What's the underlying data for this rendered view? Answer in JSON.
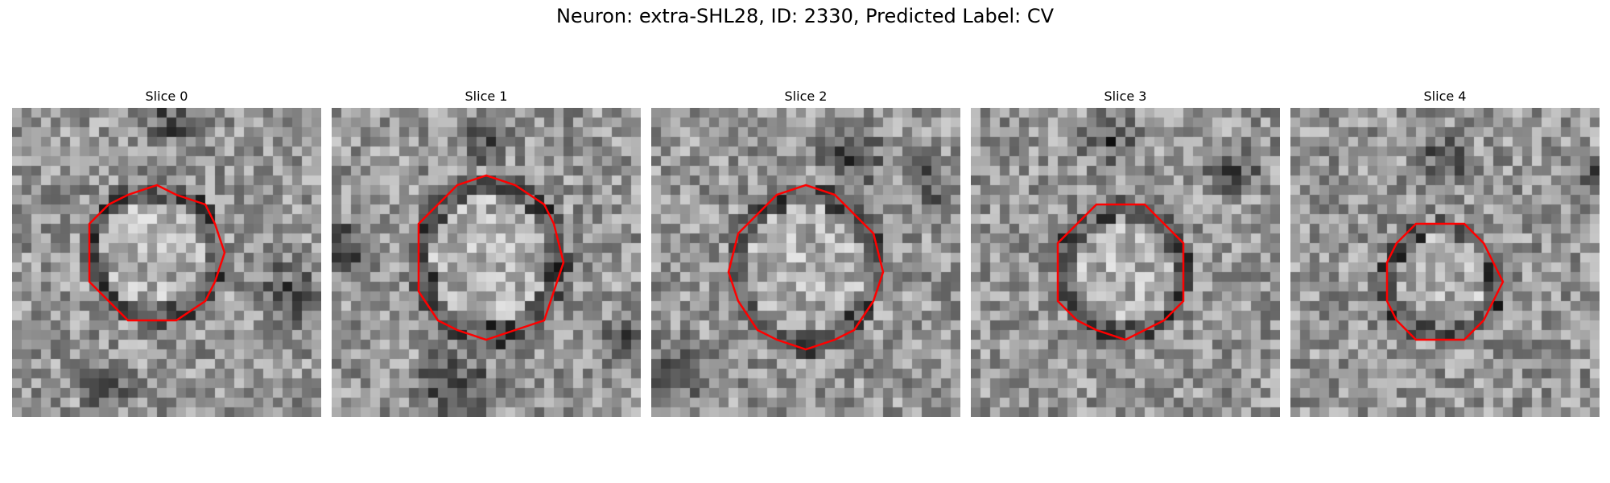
{
  "figure": {
    "title": "Neuron: extra-SHL28, ID: 2330, Predicted Label: CV"
  },
  "panels": [
    {
      "title": "Slice 0",
      "contour_color": "#ff0000",
      "colormap": "gray"
    },
    {
      "title": "Slice 1",
      "contour_color": "#ff0000",
      "colormap": "gray"
    },
    {
      "title": "Slice 2",
      "contour_color": "#ff0000",
      "colormap": "gray"
    },
    {
      "title": "Slice 3",
      "contour_color": "#ff0000",
      "colormap": "gray"
    },
    {
      "title": "Slice 4",
      "contour_color": "#ff0000",
      "colormap": "gray"
    }
  ]
}
